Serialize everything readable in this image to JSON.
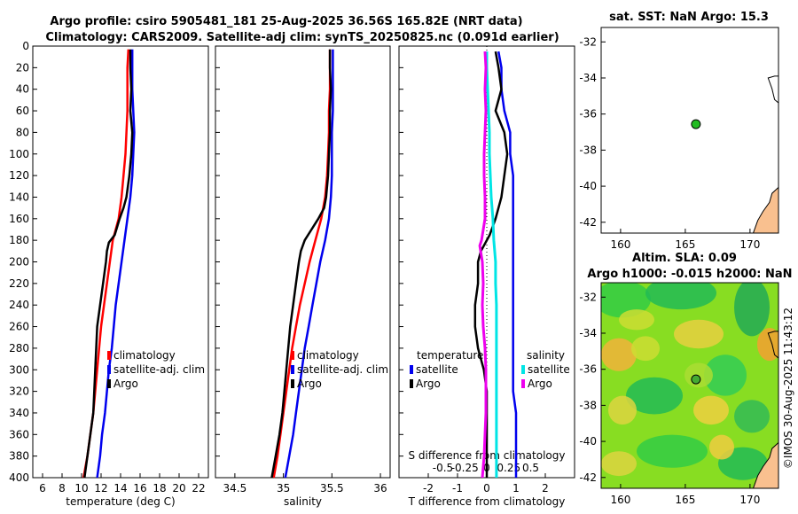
{
  "header": {
    "title_line1": "Argo profile: csiro 5905481_181 25-Aug-2025 36.56S 165.82E (NRT data)",
    "title_line2": "Climatology: CARS2009. Satellite-adj clim: synTS_20250825.nc (0.091d earlier)"
  },
  "credit": "©IMOS 30-Aug-2025 11:43:12",
  "colors": {
    "climatology": "#ff0000",
    "satellite": "#0000ee",
    "argo": "#000000",
    "salinity_sat": "#00e5e5",
    "salinity_argo": "#ee00ee",
    "land": "#f9c08f",
    "float_marker": "#22bb22"
  },
  "chart_data": [
    {
      "id": "temperature",
      "type": "line",
      "xlabel": "temperature (deg C)",
      "ylabel": "",
      "xlim": [
        5,
        23
      ],
      "ylim": [
        400,
        0
      ],
      "xticks": [
        "6",
        "8",
        "10",
        "12",
        "14",
        "16",
        "18",
        "20",
        "22"
      ],
      "xtick_values": [
        6,
        8,
        10,
        12,
        14,
        16,
        18,
        20,
        22
      ],
      "yticks": [
        "0",
        "20",
        "40",
        "60",
        "80",
        "100",
        "120",
        "140",
        "160",
        "180",
        "200",
        "220",
        "240",
        "260",
        "280",
        "300",
        "320",
        "340",
        "360",
        "380",
        "400"
      ],
      "ytick_values": [
        0,
        20,
        40,
        60,
        80,
        100,
        120,
        140,
        160,
        180,
        200,
        220,
        240,
        260,
        280,
        300,
        320,
        340,
        360,
        380,
        400
      ],
      "legend": [
        "climatology",
        "satellite-adj. clim",
        "Argo"
      ],
      "series": [
        {
          "name": "climatology",
          "color": "#ff0000",
          "depth": [
            3,
            20,
            40,
            60,
            80,
            100,
            120,
            140,
            160,
            180,
            200,
            220,
            240,
            260,
            280,
            300,
            320,
            340,
            360,
            380,
            400
          ],
          "values": [
            14.8,
            14.7,
            14.7,
            14.7,
            14.6,
            14.5,
            14.3,
            14.1,
            13.8,
            13.2,
            12.9,
            12.6,
            12.3,
            12.0,
            11.8,
            11.6,
            11.4,
            11.2,
            10.9,
            10.6,
            10.2
          ]
        },
        {
          "name": "satellite-adj. clim",
          "color": "#0000ee",
          "depth": [
            3,
            20,
            40,
            60,
            80,
            100,
            120,
            140,
            160,
            180,
            200,
            220,
            240,
            260,
            280,
            300,
            320,
            340,
            360,
            380,
            400
          ],
          "values": [
            15.2,
            15.2,
            15.2,
            15.3,
            15.4,
            15.3,
            15.2,
            15.0,
            14.7,
            14.4,
            14.1,
            13.8,
            13.5,
            13.3,
            13.1,
            12.8,
            12.6,
            12.4,
            12.1,
            11.9,
            11.6
          ]
        },
        {
          "name": "Argo",
          "color": "#000000",
          "depth": [
            3,
            20,
            40,
            60,
            80,
            100,
            120,
            140,
            150,
            160,
            175,
            182,
            190,
            200,
            220,
            240,
            260,
            280,
            300,
            320,
            340,
            360,
            380,
            400
          ],
          "values": [
            15.0,
            15.0,
            15.1,
            15.0,
            15.2,
            15.1,
            14.9,
            14.6,
            14.3,
            13.9,
            13.4,
            12.8,
            12.6,
            12.5,
            12.2,
            11.9,
            11.6,
            11.5,
            11.4,
            11.3,
            11.2,
            10.9,
            10.6,
            10.3
          ]
        }
      ]
    },
    {
      "id": "salinity",
      "type": "line",
      "xlabel": "salinity",
      "ylabel": "",
      "xlim": [
        34.3,
        36.1
      ],
      "ylim": [
        400,
        0
      ],
      "xticks": [
        "34.5",
        "35",
        "35.5",
        "36"
      ],
      "xtick_values": [
        34.5,
        35,
        35.5,
        36
      ],
      "legend": [
        "climatology",
        "satellite-adj. clim",
        "Argo"
      ],
      "series": [
        {
          "name": "climatology",
          "color": "#ff0000",
          "depth": [
            3,
            20,
            40,
            60,
            80,
            100,
            120,
            140,
            160,
            180,
            200,
            220,
            240,
            260,
            280,
            300,
            320,
            340,
            360,
            380,
            400
          ],
          "values": [
            35.48,
            35.48,
            35.48,
            35.47,
            35.47,
            35.46,
            35.45,
            35.43,
            35.39,
            35.33,
            35.27,
            35.22,
            35.17,
            35.13,
            35.09,
            35.06,
            35.03,
            35.0,
            34.97,
            34.94,
            34.9
          ]
        },
        {
          "name": "satellite-adj. clim",
          "color": "#0000ee",
          "depth": [
            3,
            20,
            40,
            60,
            80,
            100,
            120,
            140,
            160,
            180,
            200,
            220,
            240,
            260,
            280,
            300,
            320,
            340,
            360,
            380,
            400
          ],
          "values": [
            35.51,
            35.51,
            35.51,
            35.51,
            35.5,
            35.5,
            35.5,
            35.49,
            35.47,
            35.43,
            35.38,
            35.34,
            35.3,
            35.26,
            35.22,
            35.19,
            35.16,
            35.13,
            35.1,
            35.06,
            35.02
          ]
        },
        {
          "name": "Argo",
          "color": "#000000",
          "depth": [
            3,
            20,
            40,
            60,
            80,
            100,
            120,
            140,
            150,
            160,
            170,
            180,
            190,
            200,
            220,
            240,
            260,
            280,
            300,
            320,
            340,
            360,
            380,
            400
          ],
          "values": [
            35.48,
            35.48,
            35.49,
            35.48,
            35.48,
            35.47,
            35.46,
            35.44,
            35.42,
            35.36,
            35.29,
            35.22,
            35.18,
            35.16,
            35.13,
            35.1,
            35.07,
            35.05,
            35.03,
            35.01,
            34.99,
            34.96,
            34.92,
            34.88
          ]
        }
      ]
    },
    {
      "id": "difference",
      "type": "line",
      "xlabel": "T difference from climatology",
      "top_label": "S difference from climatology",
      "xlim": [
        -3,
        3
      ],
      "ylim": [
        400,
        0
      ],
      "xticks": [
        "-2",
        "-1",
        "0",
        "1",
        "2"
      ],
      "xtick_values": [
        -2,
        -1,
        0,
        1,
        2
      ],
      "top_xticks": [
        "-0.5",
        "-0.25",
        "0",
        "0.25",
        "0.5"
      ],
      "top_xtick_values": [
        -0.5,
        -0.25,
        0,
        0.25,
        0.5
      ],
      "legend_left": {
        "title": "temperature",
        "items": [
          "satellite",
          "Argo"
        ]
      },
      "legend_right": {
        "title": "salinity",
        "items": [
          "satellite",
          "Argo"
        ]
      },
      "series": [
        {
          "name": "T satellite",
          "color": "#0000ee",
          "depth": [
            5,
            20,
            40,
            60,
            80,
            100,
            120,
            140,
            160,
            180,
            200,
            220,
            240,
            260,
            280,
            300,
            320,
            340,
            360,
            380,
            400
          ],
          "values": [
            0.4,
            0.5,
            0.5,
            0.6,
            0.8,
            0.8,
            0.9,
            0.9,
            0.9,
            0.9,
            0.9,
            0.9,
            0.9,
            0.9,
            0.9,
            0.9,
            0.9,
            1.0,
            1.0,
            1.0,
            1.0
          ]
        },
        {
          "name": "T Argo",
          "color": "#000000",
          "depth": [
            5,
            20,
            40,
            60,
            80,
            100,
            120,
            140,
            160,
            175,
            190,
            200,
            220,
            240,
            260,
            280,
            300,
            320,
            340,
            360,
            380,
            400
          ],
          "values": [
            0.3,
            0.4,
            0.5,
            0.3,
            0.6,
            0.7,
            0.6,
            0.5,
            0.3,
            0.1,
            -0.2,
            -0.3,
            -0.3,
            -0.4,
            -0.4,
            -0.3,
            -0.1,
            0.0,
            0.0,
            0.0,
            0.0,
            0.0
          ]
        },
        {
          "name": "S satellite",
          "color": "#00e5e5",
          "depth": [
            5,
            20,
            40,
            60,
            80,
            100,
            120,
            140,
            160,
            180,
            200,
            220,
            240,
            260,
            280,
            300,
            320,
            340,
            360,
            380,
            400
          ],
          "values": [
            0.0,
            0.0,
            0.01,
            0.02,
            0.03,
            0.03,
            0.04,
            0.05,
            0.07,
            0.08,
            0.1,
            0.1,
            0.11,
            0.11,
            0.11,
            0.11,
            0.11,
            0.11,
            0.11,
            0.11,
            0.11
          ]
        },
        {
          "name": "S Argo",
          "color": "#ee00ee",
          "depth": [
            5,
            20,
            40,
            60,
            80,
            100,
            120,
            140,
            160,
            180,
            185,
            200,
            220,
            240,
            260,
            280,
            300,
            320,
            340,
            360,
            380,
            400
          ],
          "values": [
            -0.02,
            -0.01,
            -0.02,
            -0.01,
            -0.02,
            -0.03,
            -0.03,
            -0.02,
            -0.02,
            -0.06,
            -0.08,
            -0.05,
            -0.04,
            -0.05,
            -0.04,
            -0.02,
            -0.01,
            -0.01,
            -0.01,
            -0.02,
            -0.03,
            -0.05
          ]
        }
      ]
    },
    {
      "id": "sst_map",
      "type": "scatter",
      "title": "sat. SST: NaN Argo: 15.3",
      "xlim": [
        158.5,
        172.2
      ],
      "ylim": [
        -42.6,
        -31.2
      ],
      "xticks": [
        "160",
        "165",
        "170"
      ],
      "xtick_values": [
        160,
        165,
        170
      ],
      "yticks": [
        "-32",
        "-34",
        "-36",
        "-38",
        "-40",
        "-42"
      ],
      "ytick_values": [
        -32,
        -34,
        -36,
        -38,
        -40,
        -42
      ],
      "points": [
        {
          "x": 165.82,
          "y": -36.56
        }
      ]
    },
    {
      "id": "sla_map",
      "type": "heatmap",
      "title_line1": "Altim. SLA: 0.09",
      "title_line2": "Argo h1000: -0.015 h2000: NaN",
      "xlim": [
        158.5,
        172.2
      ],
      "ylim": [
        -42.6,
        -31.2
      ],
      "xticks": [
        "160",
        "165",
        "170"
      ],
      "xtick_values": [
        160,
        165,
        170
      ],
      "yticks": [
        "-32",
        "-34",
        "-36",
        "-38",
        "-40",
        "-42"
      ],
      "ytick_values": [
        -32,
        -34,
        -36,
        -38,
        -40,
        -42
      ],
      "points": [
        {
          "x": 165.82,
          "y": -36.56
        }
      ]
    }
  ]
}
